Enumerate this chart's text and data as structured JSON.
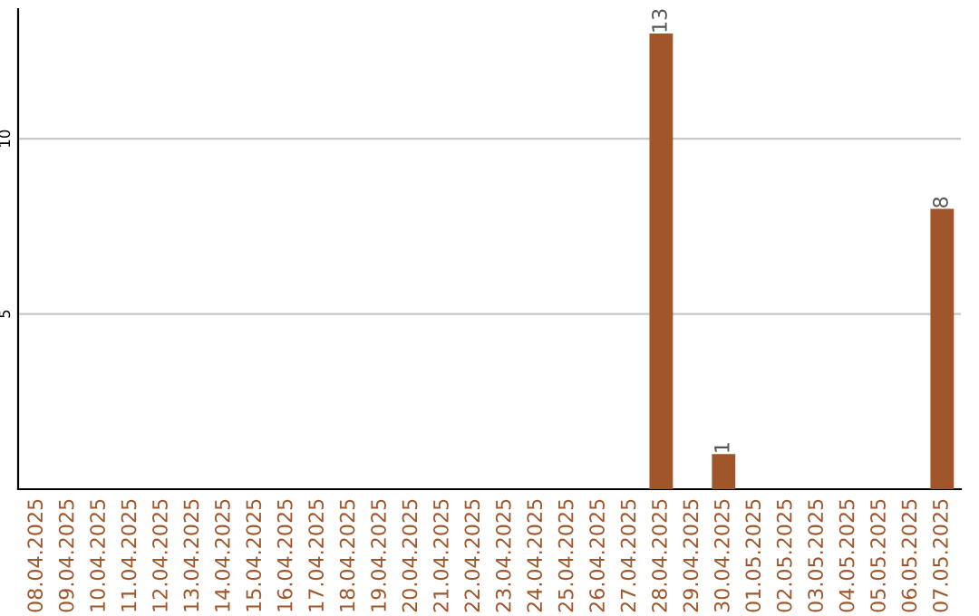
{
  "chart_data": {
    "type": "bar",
    "categories": [
      "08.04.2025",
      "09.04.2025",
      "10.04.2025",
      "11.04.2025",
      "12.04.2025",
      "13.04.2025",
      "14.04.2025",
      "15.04.2025",
      "16.04.2025",
      "17.04.2025",
      "18.04.2025",
      "19.04.2025",
      "20.04.2025",
      "21.04.2025",
      "22.04.2025",
      "23.04.2025",
      "24.04.2025",
      "25.04.2025",
      "26.04.2025",
      "27.04.2025",
      "28.04.2025",
      "29.04.2025",
      "30.04.2025",
      "01.05.2025",
      "02.05.2025",
      "03.05.2025",
      "04.05.2025",
      "05.05.2025",
      "06.05.2025",
      "07.05.2025"
    ],
    "values": [
      0,
      0,
      0,
      0,
      0,
      0,
      0,
      0,
      0,
      0,
      0,
      0,
      0,
      0,
      0,
      0,
      0,
      0,
      0,
      0,
      13,
      0,
      1,
      0,
      0,
      0,
      0,
      0,
      0,
      8
    ],
    "value_labels": [
      null,
      null,
      null,
      null,
      null,
      null,
      null,
      null,
      null,
      null,
      null,
      null,
      null,
      null,
      null,
      null,
      null,
      null,
      null,
      null,
      "13",
      null,
      "1",
      null,
      null,
      null,
      null,
      null,
      null,
      "8"
    ],
    "color": "#a0562a",
    "ylim": [
      0,
      13.7
    ],
    "yticks": [
      5,
      10
    ],
    "grid": "y"
  }
}
